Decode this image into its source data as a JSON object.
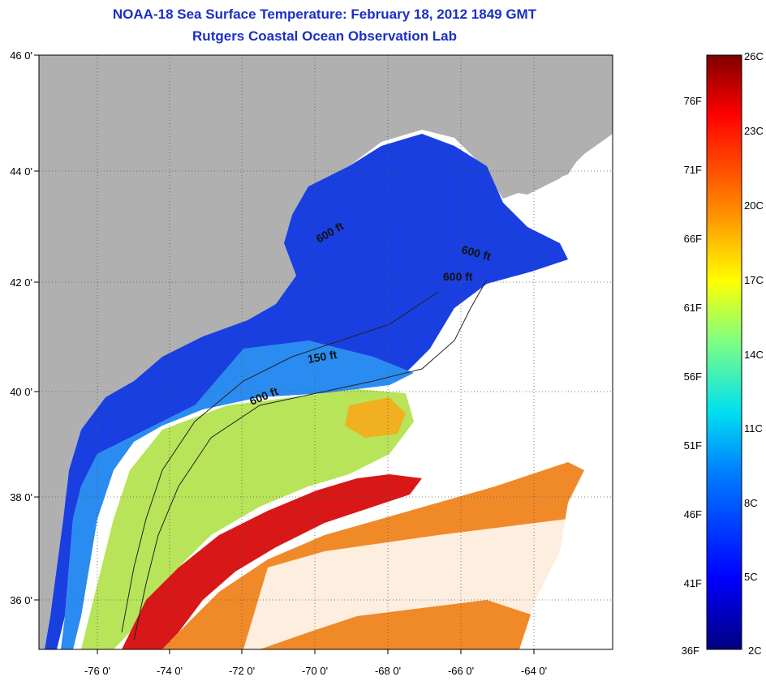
{
  "header": {
    "title": "NOAA-18 Sea Surface Temperature:  February 18, 2012 1849 GMT",
    "subtitle": "Rutgers Coastal Ocean Observation Lab"
  },
  "map": {
    "lat_labels": [
      "46 0'",
      "44 0'",
      "42 0'",
      "40 0'",
      "38 0'",
      "36 0'"
    ],
    "lon_labels": [
      "-76 0'",
      "-74 0'",
      "-72 0'",
      "-70 0'",
      "-68 0'",
      "-66 0'",
      "-64 0'"
    ],
    "contour_labels": [
      "600 ft",
      "600 ft",
      "600 ft",
      "150 ft",
      "600 ft"
    ],
    "colors": {
      "land": "#b0b0b0",
      "cloud": "#ffffff",
      "cold": "#1010d8",
      "cool": "#2080f0",
      "mid": "#c8e840",
      "warm": "#f08020",
      "hot": "#d81010"
    }
  },
  "colorbar": {
    "celsius_labels": [
      "26C",
      "23C",
      "20C",
      "17C",
      "14C",
      "11C",
      "8C",
      "5C",
      "2C"
    ],
    "fahrenheit_labels": [
      "76F",
      "71F",
      "66F",
      "61F",
      "56F",
      "51F",
      "46F",
      "41F",
      "36F"
    ],
    "range_celsius": [
      2,
      26
    ],
    "stops": [
      "#000080",
      "#0000ff",
      "#0080ff",
      "#00e0f0",
      "#80ff80",
      "#ffff00",
      "#ff8000",
      "#ff0000",
      "#800000"
    ]
  }
}
